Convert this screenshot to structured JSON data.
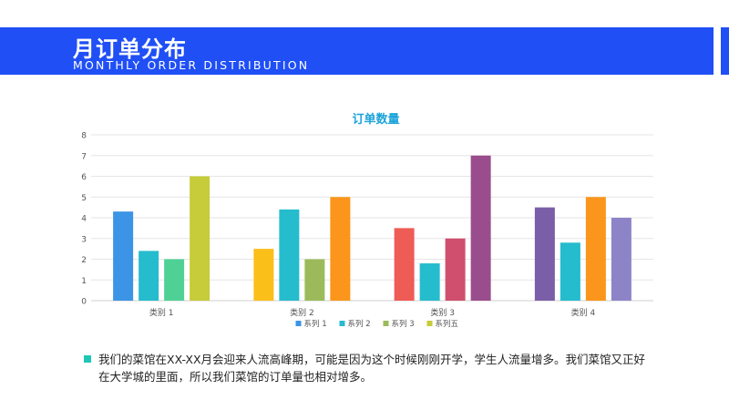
{
  "header": {
    "title": "月订单分布",
    "subtitle": "MONTHLY ORDER DISTRIBUTION"
  },
  "footer": {
    "text": "我们的菜馆在XX-XX月会迎来人流高峰期，可能是因为这个时候刚刚开学，学生人流量增多。我们菜馆又正好在大学城的里面，所以我们菜馆的订单量也相对增多。",
    "bullet_color": "#1fc6b6"
  },
  "chart_data": {
    "type": "bar",
    "title": "订单数量",
    "categories": [
      "类别 1",
      "类别 2",
      "类别 3",
      "类别 4"
    ],
    "series": [
      {
        "name": "系列 1",
        "values": [
          4.3,
          2.5,
          3.5,
          4.5
        ]
      },
      {
        "name": "系列 2",
        "values": [
          2.4,
          4.4,
          1.8,
          2.8
        ]
      },
      {
        "name": "系列 3",
        "values": [
          2.0,
          2.0,
          3.0,
          5.0
        ]
      },
      {
        "name": "系列五",
        "values": [
          6.0,
          5.0,
          7.0,
          4.0
        ]
      }
    ],
    "bar_colors": [
      [
        "#3b94e6",
        "#25bccd",
        "#4fd196",
        "#c6cc3a"
      ],
      [
        "#fbbf1a",
        "#25bccd",
        "#9bbb5a",
        "#fb951c"
      ],
      [
        "#ef5b55",
        "#25bccd",
        "#d04f6e",
        "#9a4d8c"
      ],
      [
        "#7b5ea8",
        "#25bccd",
        "#fb951c",
        "#8d84c8"
      ]
    ],
    "legend_colors": [
      "#3b94e6",
      "#25bccd",
      "#9bbb5a",
      "#c6cc3a"
    ],
    "ylim": [
      0,
      8
    ],
    "yticks": [
      0,
      1,
      2,
      3,
      4,
      5,
      6,
      7,
      8
    ],
    "grid": true,
    "legend_position": "bottom",
    "title_color": "#1aa3d9"
  }
}
